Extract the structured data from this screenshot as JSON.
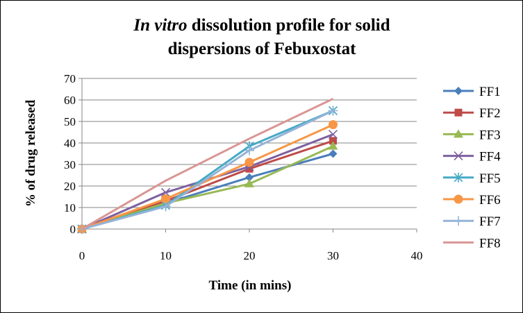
{
  "chart_data": {
    "type": "line",
    "title_italic": "In vitro",
    "title_rest_line1": "dissolution profile for solid",
    "title_line2": "dispersions of Febuxostat",
    "xlabel": "Time (in mins)",
    "ylabel": "% of drug released",
    "xlim": [
      0,
      40
    ],
    "ylim": [
      0,
      70
    ],
    "xticks": [
      0,
      10,
      20,
      30,
      40
    ],
    "yticks": [
      0,
      10,
      20,
      30,
      40,
      50,
      60,
      70
    ],
    "grid": "horizontal",
    "legend_position": "right",
    "x": [
      0,
      10,
      20,
      30
    ],
    "series": [
      {
        "name": "FF1",
        "values": [
          0,
          12,
          24,
          35
        ],
        "color": "#4a7ebb",
        "marker": "diamond"
      },
      {
        "name": "FF2",
        "values": [
          0,
          13,
          28,
          41
        ],
        "color": "#be4b48",
        "marker": "square"
      },
      {
        "name": "FF3",
        "values": [
          0,
          12,
          21,
          38.5
        ],
        "color": "#98b954",
        "marker": "triangle"
      },
      {
        "name": "FF4",
        "values": [
          0,
          17,
          29,
          44
        ],
        "color": "#7d60a0",
        "marker": "x"
      },
      {
        "name": "FF5",
        "values": [
          0,
          11,
          38.5,
          55
        ],
        "color": "#46aac5",
        "marker": "star"
      },
      {
        "name": "FF6",
        "values": [
          0,
          14,
          31,
          48.5
        ],
        "color": "#f79646",
        "marker": "circle"
      },
      {
        "name": "FF7",
        "values": [
          0,
          10.5,
          36.5,
          55
        ],
        "color": "#95b3d7",
        "marker": "plus"
      },
      {
        "name": "FF8",
        "values": [
          0,
          22.5,
          42,
          60.5
        ],
        "color": "#d99694",
        "marker": "none"
      }
    ]
  }
}
